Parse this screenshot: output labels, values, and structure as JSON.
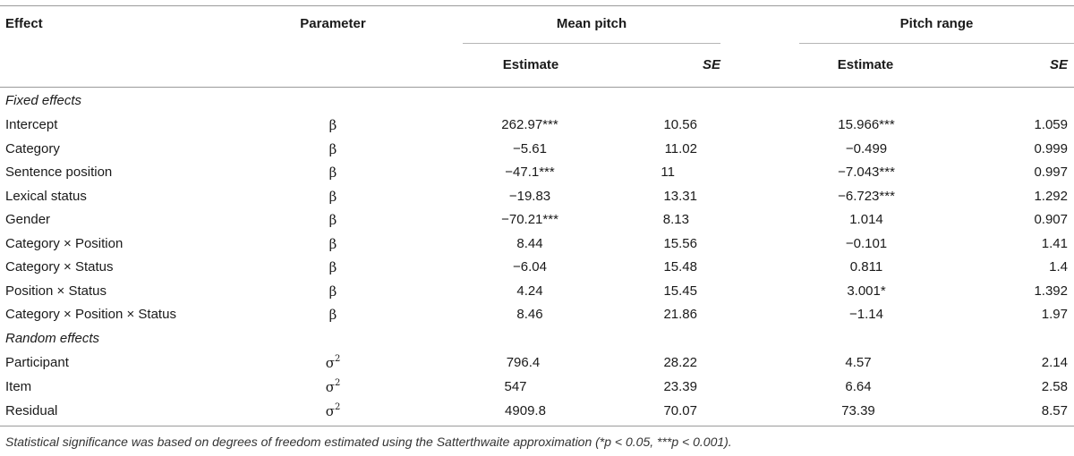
{
  "header": {
    "effect": "Effect",
    "parameter": "Parameter",
    "mean_pitch": "Mean pitch",
    "pitch_range": "Pitch range",
    "estimate": "Estimate",
    "se": "SE"
  },
  "sections": {
    "fixed": "Fixed effects",
    "random": "Random effects"
  },
  "fixed_rows": [
    {
      "effect": "Intercept",
      "param": "β",
      "mp_est": "262.97***",
      "mp_se": "10.56",
      "pr_est": "15.966***",
      "pr_se": "1.059"
    },
    {
      "effect": "Category",
      "param": "β",
      "mp_est": "−5.61",
      "mp_se": "11.02",
      "pr_est": "−0.499",
      "pr_se": "0.999"
    },
    {
      "effect": "Sentence position",
      "param": "β",
      "mp_est": "−47.1***",
      "mp_se": "11",
      "pr_est": "−7.043***",
      "pr_se": "0.997"
    },
    {
      "effect": "Lexical status",
      "param": "β",
      "mp_est": "−19.83",
      "mp_se": "13.31",
      "pr_est": "−6.723***",
      "pr_se": "1.292"
    },
    {
      "effect": "Gender",
      "param": "β",
      "mp_est": "−70.21***",
      "mp_se": "8.13",
      "pr_est": "1.014",
      "pr_se": "0.907"
    },
    {
      "effect": "Category × Position",
      "param": "β",
      "mp_est": "8.44",
      "mp_se": "15.56",
      "pr_est": "−0.101",
      "pr_se": "1.41"
    },
    {
      "effect": "Category × Status",
      "param": "β",
      "mp_est": "−6.04",
      "mp_se": "15.48",
      "pr_est": "0.811",
      "pr_se": "1.4"
    },
    {
      "effect": "Position × Status",
      "param": "β",
      "mp_est": "4.24",
      "mp_se": "15.45",
      "pr_est": "3.001*",
      "pr_se": "1.392"
    },
    {
      "effect": "Category × Position × Status",
      "param": "β",
      "mp_est": "8.46",
      "mp_se": "21.86",
      "pr_est": "−1.14",
      "pr_se": "1.97"
    }
  ],
  "random_rows": [
    {
      "effect": "Participant",
      "param": "σ",
      "param_sup": "2",
      "mp_est": "796.4",
      "mp_se": "28.22",
      "pr_est": "4.57",
      "pr_se": "2.14"
    },
    {
      "effect": "Item",
      "param": "σ",
      "param_sup": "2",
      "mp_est": "547",
      "mp_se": "23.39",
      "pr_est": "6.64",
      "pr_se": "2.58"
    },
    {
      "effect": "Residual",
      "param": "σ",
      "param_sup": "2",
      "mp_est": "4909.8",
      "mp_se": "70.07",
      "pr_est": "73.39",
      "pr_se": "8.57"
    }
  ],
  "footnote": "Statistical significance was based on degrees of freedom estimated using the Satterthwaite approximation (*p < 0.05, ***p < 0.001)."
}
